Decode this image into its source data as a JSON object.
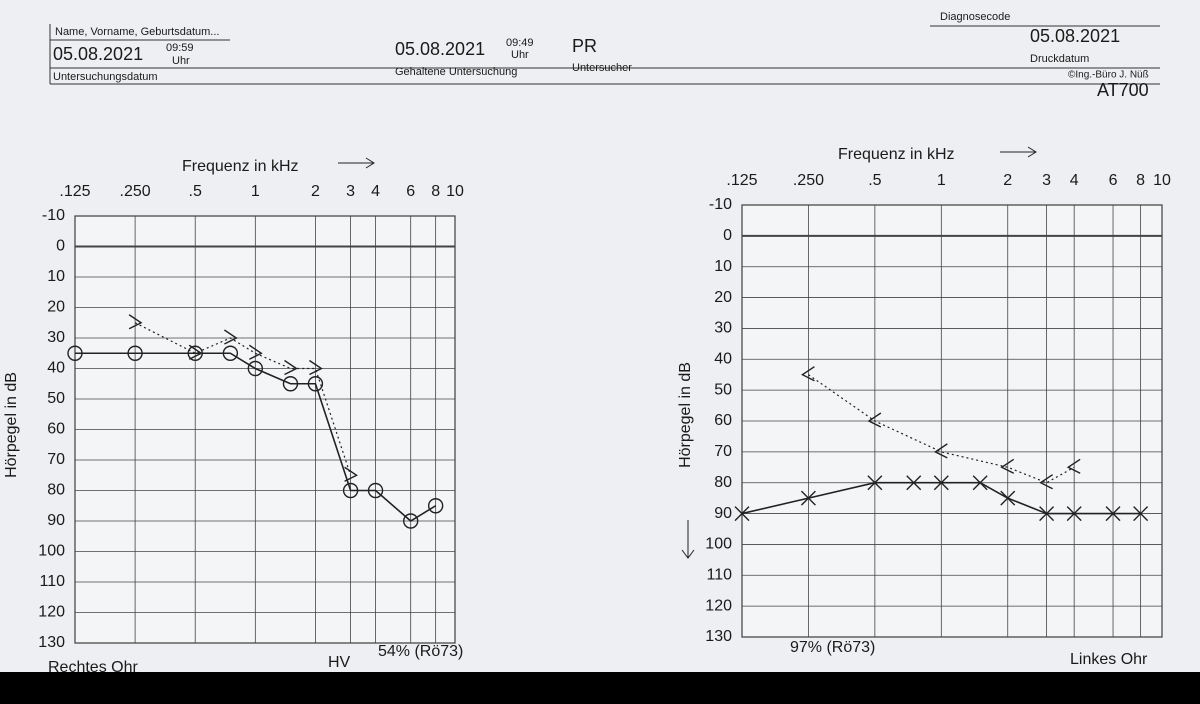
{
  "header": {
    "name_label": "Name, Vorname, Geburtsdatum...",
    "exam_date": "05.08.2021",
    "exam_time": "09:59",
    "exam_time_unit": "Uhr",
    "exam_date_label": "Untersuchungsdatum",
    "held_date": "05.08.2021",
    "held_time": "09:49",
    "held_time_unit": "Uhr",
    "held_label": "Gehaltene Untersuchung",
    "examiner": "PR",
    "examiner_label": "Untersucher",
    "diagnosis_label": "Diagnosecode",
    "print_date": "05.08.2021",
    "print_date_label": "Druckdatum",
    "copyright": "©Ing.-Büro J. Nüß",
    "device": "AT700"
  },
  "chart_data": [
    {
      "type": "line",
      "x_label": "Frequenz in kHz",
      "y_label": "Hörpegel in dB",
      "xscale": "log",
      "y_inverted": true,
      "grid": true,
      "xlim": [
        0.125,
        10
      ],
      "ylim": [
        -10,
        130
      ],
      "xticks": [
        {
          "value": 0.125,
          "label": ".125"
        },
        {
          "value": 0.25,
          "label": ".250"
        },
        {
          "value": 0.5,
          "label": ".5"
        },
        1,
        2,
        3,
        4,
        6,
        8,
        10
      ],
      "yticks": [
        -10,
        0,
        10,
        20,
        30,
        40,
        50,
        60,
        70,
        80,
        90,
        100,
        110,
        120,
        130
      ],
      "series": [
        {
          "marker": "o",
          "color": "#222222",
          "dashed": false,
          "x": [
            0.125,
            0.25,
            0.5,
            0.75,
            1,
            1.5,
            2,
            3,
            4,
            6,
            8
          ],
          "values": [
            35,
            35,
            35,
            35,
            40,
            45,
            45,
            80,
            80,
            90,
            85
          ]
        },
        {
          "marker": ">",
          "color": "#222222",
          "dashed": true,
          "x": [
            0.25,
            0.5,
            0.75,
            1,
            1.5,
            2,
            3
          ],
          "values": [
            25,
            35,
            30,
            35,
            40,
            40,
            75
          ]
        }
      ],
      "annotations": [
        "HV",
        "54% (Rö73)"
      ],
      "ear": "Rechtes Ohr"
    },
    {
      "type": "line",
      "x_label": "Frequenz in kHz",
      "y_label": "Hörpegel in dB",
      "xscale": "log",
      "y_inverted": true,
      "grid": true,
      "xlim": [
        0.125,
        10
      ],
      "ylim": [
        -10,
        130
      ],
      "xticks": [
        {
          "value": 0.125,
          "label": ".125"
        },
        {
          "value": 0.25,
          "label": ".250"
        },
        {
          "value": 0.5,
          "label": ".5"
        },
        1,
        2,
        3,
        4,
        6,
        8,
        10
      ],
      "yticks": [
        -10,
        0,
        10,
        20,
        30,
        40,
        50,
        60,
        70,
        80,
        90,
        100,
        110,
        120,
        130
      ],
      "series": [
        {
          "marker": "x",
          "color": "#222222",
          "dashed": false,
          "x": [
            0.125,
            0.25,
            0.5,
            0.75,
            1,
            1.5,
            2,
            3,
            4,
            6,
            8
          ],
          "values": [
            90,
            85,
            80,
            80,
            80,
            80,
            85,
            90,
            90,
            90,
            90
          ]
        },
        {
          "marker": "<",
          "color": "#222222",
          "dashed": true,
          "x": [
            0.25,
            0.5,
            1,
            2,
            3,
            4
          ],
          "values": [
            45,
            60,
            70,
            75,
            80,
            75
          ]
        }
      ],
      "annotations": [
        "97% (Rö73)"
      ],
      "ear": "Linkes Ohr"
    }
  ]
}
